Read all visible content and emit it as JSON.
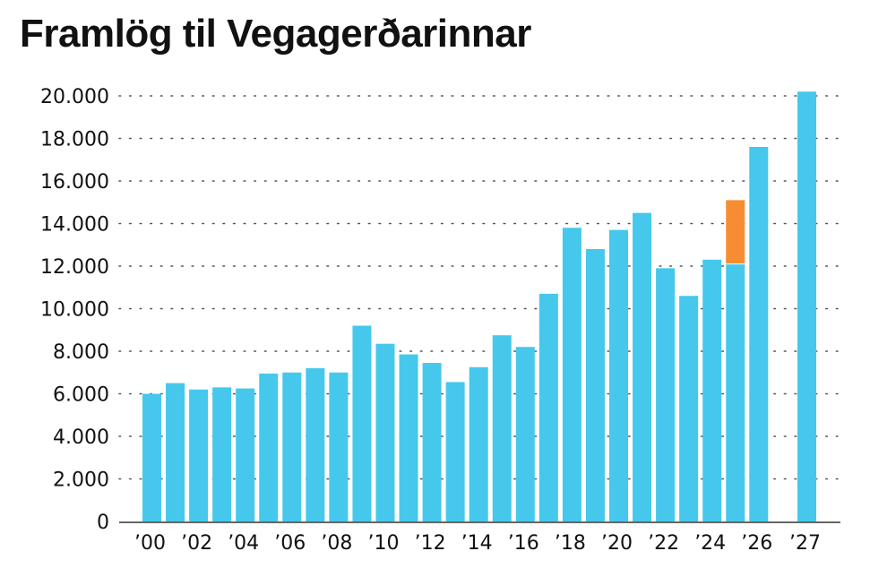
{
  "title": "Framlög til Vegagerðarinnar",
  "colors": {
    "bar": "#45c8ec",
    "highlight": "#f68d33",
    "grid": "#555555",
    "text": "#111111"
  },
  "chart_data": {
    "type": "bar",
    "stacked": true,
    "title": "Framlög til Vegagerðarinnar",
    "xlabel": "",
    "ylabel": "",
    "ylim": [
      0,
      20000
    ],
    "yticks": [
      0,
      2000,
      4000,
      6000,
      8000,
      10000,
      12000,
      14000,
      16000,
      18000,
      20000
    ],
    "ytick_labels": [
      "0",
      "2.000",
      "4.000",
      "6.000",
      "8.000",
      "10.000",
      "12.000",
      "14.000",
      "16.000",
      "18.000",
      "20.000"
    ],
    "grid": "horizontal dotted",
    "categories": [
      "2000",
      "2001",
      "2002",
      "2003",
      "2004",
      "2005",
      "2006",
      "2007",
      "2008",
      "2009",
      "2010",
      "2011",
      "2012",
      "2013",
      "2014",
      "2015",
      "2016",
      "2017",
      "2018",
      "2019",
      "2020",
      "2021",
      "2022",
      "2023",
      "2024",
      "2025",
      "2026",
      "2027"
    ],
    "xtick_labels": [
      "’00",
      "’02",
      "’04",
      "’06",
      "’08",
      "’10",
      "’12",
      "’14",
      "’16",
      "’18",
      "’20",
      "’22",
      "’24",
      "’26",
      "’27"
    ],
    "series": [
      {
        "values": [
          6000,
          6500,
          6200,
          6300,
          6250,
          6950,
          7000,
          7200,
          7000,
          9200,
          8350,
          7850,
          7450,
          6550,
          7250,
          8750,
          8200,
          10700,
          13800,
          12800,
          13700,
          14500,
          11900,
          10600,
          12300,
          12100,
          17600,
          20200
        ]
      },
      {
        "values": [
          0,
          0,
          0,
          0,
          0,
          0,
          0,
          0,
          0,
          0,
          0,
          0,
          0,
          0,
          0,
          0,
          0,
          0,
          0,
          0,
          0,
          0,
          0,
          0,
          0,
          3000,
          0,
          0
        ]
      }
    ]
  }
}
